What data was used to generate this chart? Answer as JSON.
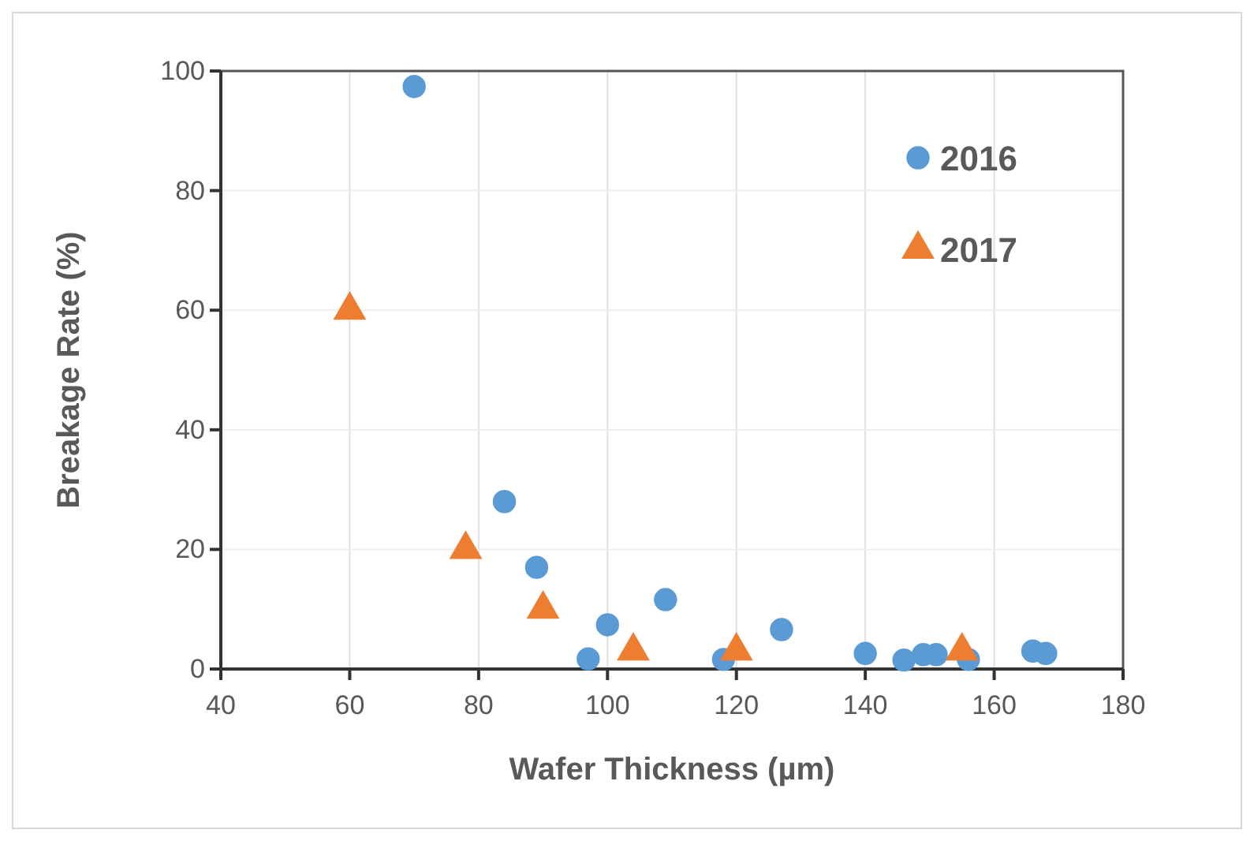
{
  "chart_data": {
    "type": "scatter",
    "xlabel": "Wafer Thickness (µm)",
    "ylabel": "Breakage Rate (%)",
    "xlim": [
      40,
      180
    ],
    "xticks": [
      40,
      60,
      80,
      100,
      120,
      140,
      160,
      180
    ],
    "ylim": [
      0,
      100
    ],
    "yticks": [
      0,
      20,
      40,
      60,
      80,
      100
    ],
    "grid": true,
    "legend": "top right",
    "series": [
      {
        "name": "2016",
        "color": "#5b9bd5",
        "marker": "circle",
        "x": [
          70,
          84,
          89,
          97,
          100,
          109,
          118,
          120,
          127,
          140,
          146,
          149,
          151,
          153,
          154,
          156,
          166,
          168
        ],
        "values": [
          97.4,
          28,
          17,
          1.7,
          7.4,
          11.6,
          1.6,
          null,
          6.6,
          2.6,
          1.5,
          2.4,
          2.4,
          null,
          null,
          1.6,
          3,
          2.6
        ]
      },
      {
        "name": "2017",
        "color": "#ed7d31",
        "marker": "triangle",
        "x": [
          60,
          78,
          90,
          104,
          120,
          155
        ],
        "values": [
          60,
          20,
          10,
          3,
          3,
          3
        ]
      }
    ]
  }
}
